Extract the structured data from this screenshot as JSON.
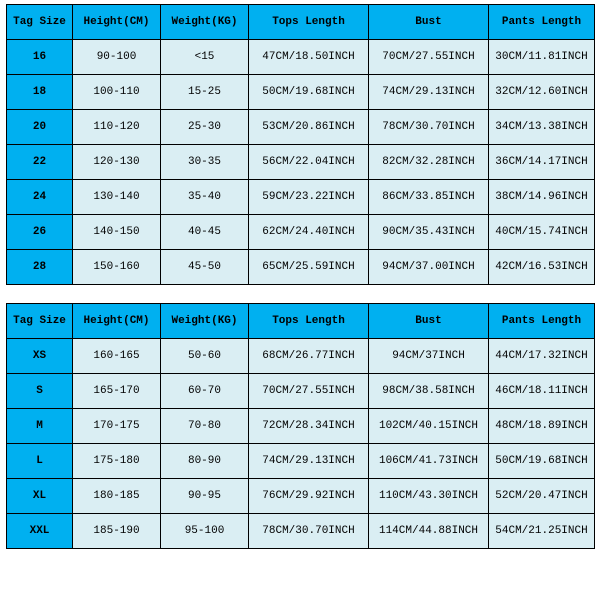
{
  "colors": {
    "header_bg": "#00b0f0",
    "tag_bg": "#00b0f0",
    "body_bg": "#daeef3",
    "border": "#000000",
    "text": "#000000"
  },
  "columns": [
    {
      "key": "tag",
      "label": "Tag Size"
    },
    {
      "key": "height",
      "label": "Height(CM)"
    },
    {
      "key": "weight",
      "label": "Weight(KG)"
    },
    {
      "key": "tops",
      "label": "Tops Length"
    },
    {
      "key": "bust",
      "label": "Bust"
    },
    {
      "key": "pants",
      "label": "Pants Length"
    }
  ],
  "tables": [
    {
      "rows": [
        {
          "tag": "16",
          "height": "90-100",
          "weight": "<15",
          "tops": "47CM/18.50INCH",
          "bust": "70CM/27.55INCH",
          "pants": "30CM/11.81INCH"
        },
        {
          "tag": "18",
          "height": "100-110",
          "weight": "15-25",
          "tops": "50CM/19.68INCH",
          "bust": "74CM/29.13INCH",
          "pants": "32CM/12.60INCH"
        },
        {
          "tag": "20",
          "height": "110-120",
          "weight": "25-30",
          "tops": "53CM/20.86INCH",
          "bust": "78CM/30.70INCH",
          "pants": "34CM/13.38INCH"
        },
        {
          "tag": "22",
          "height": "120-130",
          "weight": "30-35",
          "tops": "56CM/22.04INCH",
          "bust": "82CM/32.28INCH",
          "pants": "36CM/14.17INCH"
        },
        {
          "tag": "24",
          "height": "130-140",
          "weight": "35-40",
          "tops": "59CM/23.22INCH",
          "bust": "86CM/33.85INCH",
          "pants": "38CM/14.96INCH"
        },
        {
          "tag": "26",
          "height": "140-150",
          "weight": "40-45",
          "tops": "62CM/24.40INCH",
          "bust": "90CM/35.43INCH",
          "pants": "40CM/15.74INCH"
        },
        {
          "tag": "28",
          "height": "150-160",
          "weight": "45-50",
          "tops": "65CM/25.59INCH",
          "bust": "94CM/37.00INCH",
          "pants": "42CM/16.53INCH"
        }
      ]
    },
    {
      "rows": [
        {
          "tag": "XS",
          "height": "160-165",
          "weight": "50-60",
          "tops": "68CM/26.77INCH",
          "bust": "94CM/37INCH",
          "pants": "44CM/17.32INCH"
        },
        {
          "tag": "S",
          "height": "165-170",
          "weight": "60-70",
          "tops": "70CM/27.55INCH",
          "bust": "98CM/38.58INCH",
          "pants": "46CM/18.11INCH"
        },
        {
          "tag": "M",
          "height": "170-175",
          "weight": "70-80",
          "tops": "72CM/28.34INCH",
          "bust": "102CM/40.15INCH",
          "pants": "48CM/18.89INCH"
        },
        {
          "tag": "L",
          "height": "175-180",
          "weight": "80-90",
          "tops": "74CM/29.13INCH",
          "bust": "106CM/41.73INCH",
          "pants": "50CM/19.68INCH"
        },
        {
          "tag": "XL",
          "height": "180-185",
          "weight": "90-95",
          "tops": "76CM/29.92INCH",
          "bust": "110CM/43.30INCH",
          "pants": "52CM/20.47INCH"
        },
        {
          "tag": "XXL",
          "height": "185-190",
          "weight": "95-100",
          "tops": "78CM/30.70INCH",
          "bust": "114CM/44.88INCH",
          "pants": "54CM/21.25INCH"
        }
      ]
    }
  ]
}
